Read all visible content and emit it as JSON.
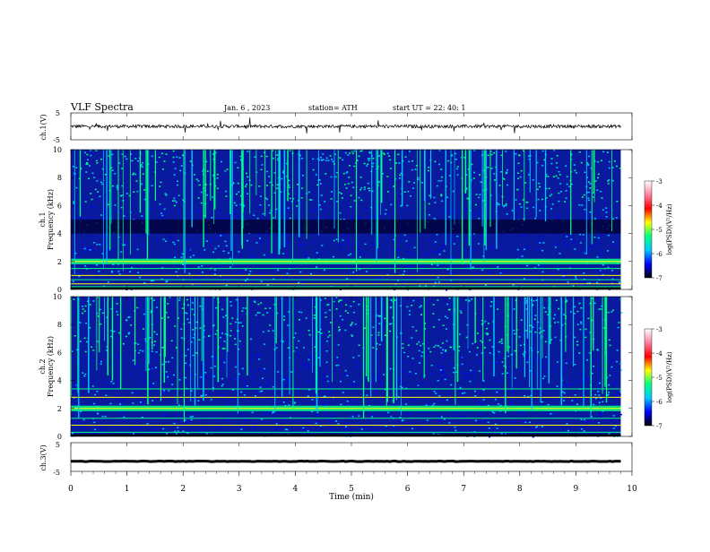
{
  "header": {
    "title": "VLF  Spectra",
    "date": "Jan. 6  , 2023",
    "station": "station= ATH",
    "start": "start  UT  =    22: 40: 1"
  },
  "colors": {
    "background": "#ffffff",
    "axis": "#000000",
    "spectrogram_base": "#0a1a9e",
    "colormap": [
      "#000000",
      "#0000ff",
      "#00c8ff",
      "#00ff80",
      "#ffff00",
      "#ff0000",
      "#ff80a0",
      "#ffffff"
    ]
  },
  "chart_data": [
    {
      "type": "line",
      "panel": "ch1-waveform",
      "ylabel": "ch.1(V)",
      "ylim": [
        -5,
        5
      ],
      "yticks": [
        "5",
        "-5"
      ],
      "xlim": [
        0,
        10
      ],
      "series": [
        {
          "baseline": 0,
          "noise_amplitude": 1.2
        }
      ]
    },
    {
      "type": "heatmap",
      "panel": "ch1-spectrogram",
      "ylabel": "ch.1\nFrequency (kHz)",
      "ylim": [
        0,
        10
      ],
      "yticks": [
        "0",
        "2",
        "4",
        "6",
        "8",
        "10"
      ],
      "xlim": [
        0,
        10
      ],
      "colorbar": {
        "label": "log(PSD)(V²/Hz)",
        "range": [
          -7,
          -3
        ],
        "ticks": [
          "-3",
          "-4",
          "-5",
          "-6",
          "-7"
        ]
      },
      "features": {
        "dark_band_khz": [
          4.0,
          5.0
        ],
        "bright_band_khz": [
          1.8,
          2.2
        ],
        "low_freq_lines_khz": [
          0.2,
          0.4,
          0.7,
          1.0,
          1.5
        ]
      }
    },
    {
      "type": "heatmap",
      "panel": "ch2-spectrogram",
      "ylabel": "ch.2\nFrequency (kHz)",
      "ylim": [
        0,
        10
      ],
      "yticks": [
        "0",
        "2",
        "4",
        "6",
        "8",
        "10"
      ],
      "xlim": [
        0,
        10
      ],
      "colorbar": {
        "label": "log(PSD)(V²/Hz)",
        "range": [
          -7,
          -3
        ],
        "ticks": [
          "-3",
          "-4",
          "-5",
          "-6",
          "-7"
        ]
      },
      "features": {
        "bright_band_khz": [
          1.8,
          2.2
        ],
        "low_freq_lines_khz": [
          0.3,
          0.8,
          1.3,
          2.8,
          3.4
        ]
      }
    },
    {
      "type": "line",
      "panel": "ch3-waveform",
      "ylabel": "ch.3(V)",
      "ylim": [
        -5,
        5
      ],
      "yticks": [
        "5",
        "-5"
      ],
      "xlim": [
        0,
        10
      ],
      "series": [
        {
          "baseline": -1.5,
          "noise_amplitude": 0.2
        }
      ]
    }
  ],
  "xaxis": {
    "label": "Time  (min)",
    "ticks": [
      "0",
      "1",
      "2",
      "3",
      "4",
      "5",
      "6",
      "7",
      "8",
      "9",
      "10"
    ],
    "range": [
      0,
      10
    ]
  }
}
